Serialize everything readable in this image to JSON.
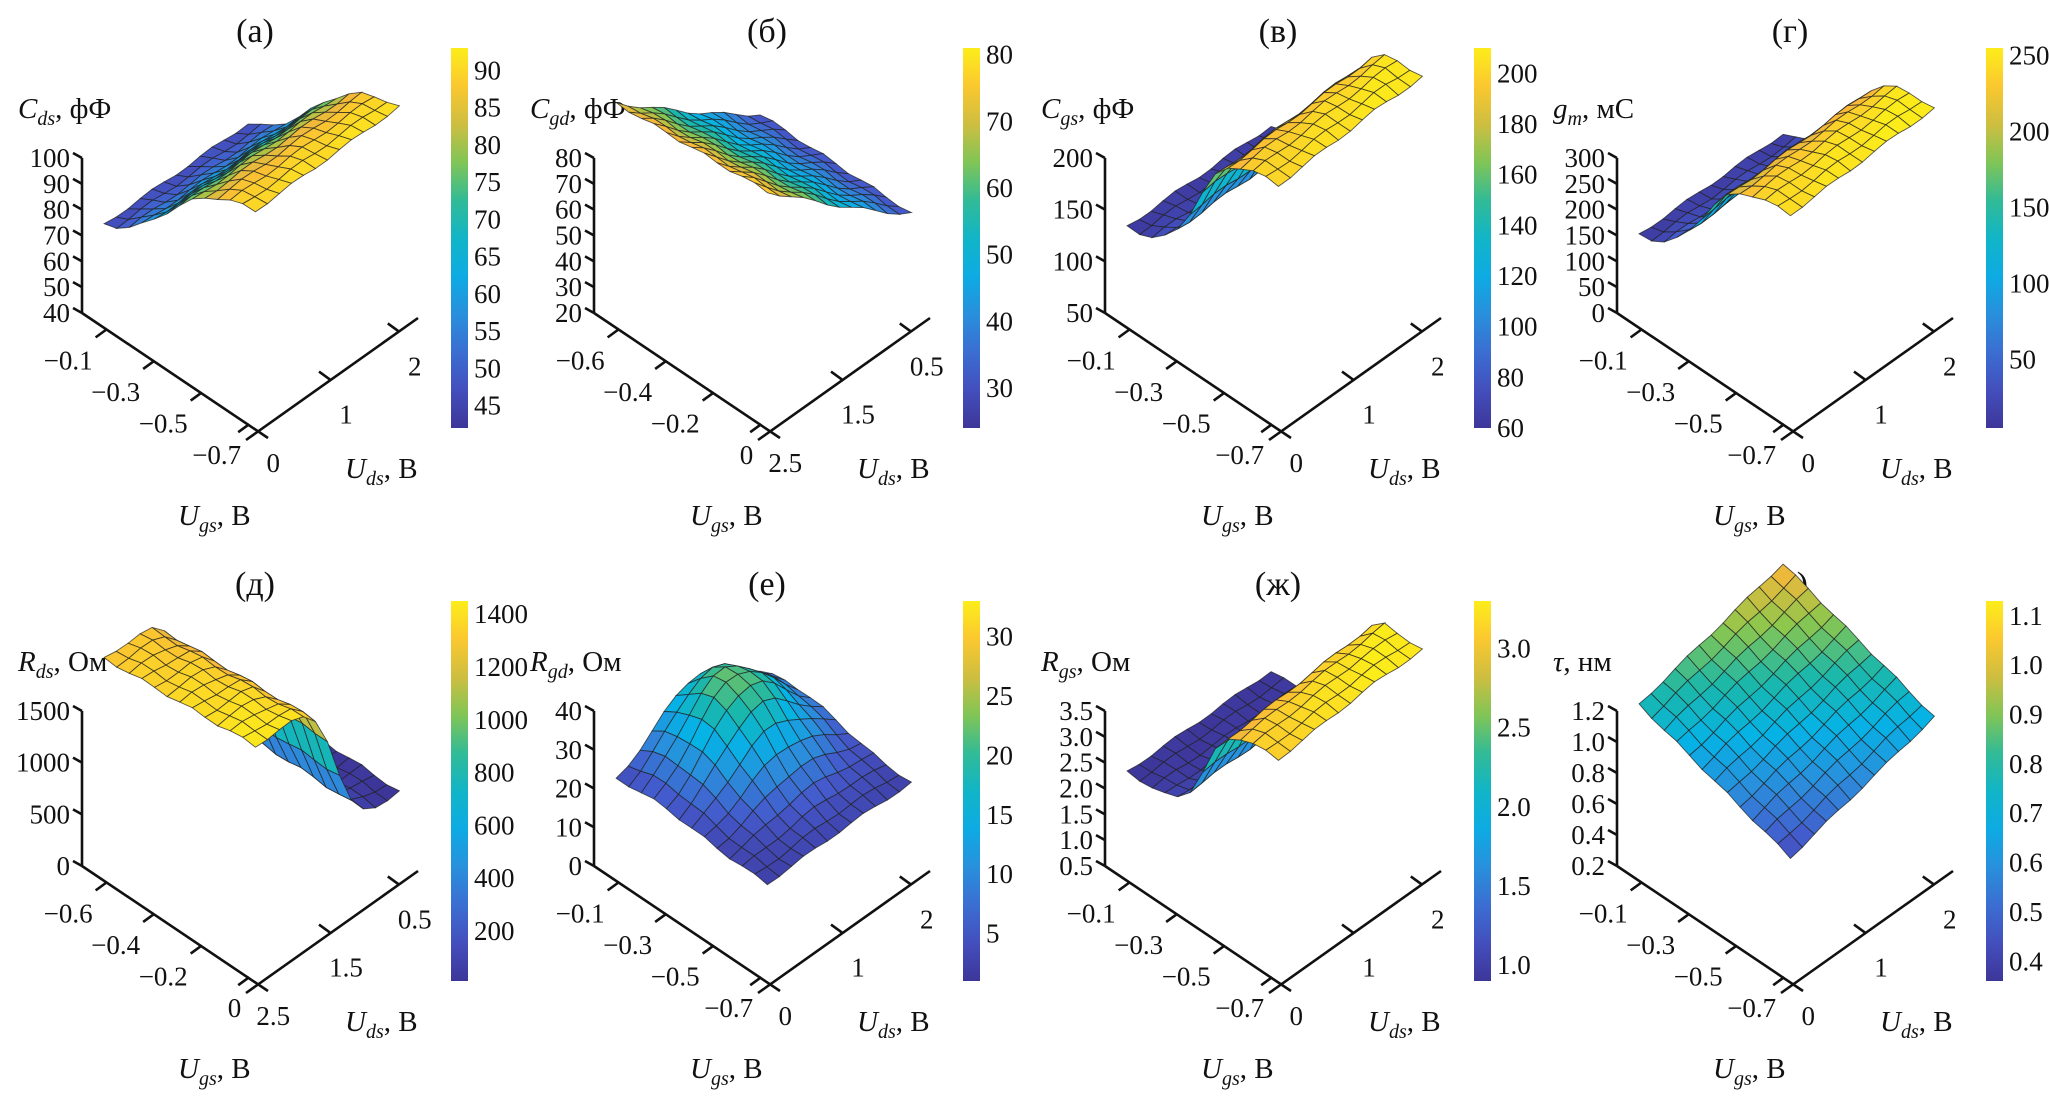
{
  "figure": {
    "panels": 8,
    "layout": "2 rows x 4 columns",
    "colormap": "parula"
  },
  "chart_data": [
    {
      "type": "surface",
      "panel_label": "(а)",
      "zlabel_sym": "C",
      "zlabel_sub": "ds",
      "zlabel_unit": ", фФ",
      "xlabel_sym": "U",
      "xlabel_sub": "gs",
      "xlabel_unit": ", В",
      "ylabel_sym": "U",
      "ylabel_sub": "ds",
      "ylabel_unit": ", В",
      "x_ticks": [
        "−0.1",
        "−0.3",
        "−0.5",
        "−0.7"
      ],
      "x_tick_values": [
        -0.1,
        -0.3,
        -0.5,
        -0.7
      ],
      "xlim": [
        -0.8,
        0.0
      ],
      "y_ticks": [
        "0",
        "1",
        "2"
      ],
      "y_tick_values": [
        0,
        1,
        2
      ],
      "ylim": [
        0,
        2.8
      ],
      "z_ticks": [
        "40",
        "50",
        "60",
        "70",
        "80",
        "90",
        "100"
      ],
      "z_tick_values": [
        40,
        50,
        60,
        70,
        80,
        90,
        100
      ],
      "zlim": [
        40,
        100
      ],
      "colorbar_ticks": [
        "45",
        "50",
        "55",
        "60",
        "65",
        "70",
        "75",
        "80",
        "85",
        "90"
      ],
      "colorbar_tick_values": [
        45,
        50,
        55,
        60,
        65,
        70,
        75,
        80,
        85,
        90
      ],
      "clim": [
        42,
        93
      ],
      "surface": "sigmoid_ugs",
      "z_low": 42,
      "z_high": 93,
      "ugs_mid": -0.45,
      "ugs_width": 0.12,
      "uds_gain": 0.02
    },
    {
      "type": "surface",
      "panel_label": "(б)",
      "zlabel_sym": "C",
      "zlabel_sub": "gd",
      "zlabel_unit": ", фФ",
      "xlabel_sym": "U",
      "xlabel_sub": "gs",
      "xlabel_unit": ", В",
      "ylabel_sym": "U",
      "ylabel_sub": "ds",
      "ylabel_unit": ", В",
      "x_ticks": [
        "−0.6",
        "−0.4",
        "−0.2",
        "0"
      ],
      "x_tick_values": [
        -0.6,
        -0.4,
        -0.2,
        0.0
      ],
      "xlim": [
        -0.7,
        0.1
      ],
      "y_ticks": [
        "2.5",
        "1.5",
        "0.5"
      ],
      "y_tick_values": [
        2.5,
        1.5,
        0.5
      ],
      "ylim": [
        2.8,
        0.0
      ],
      "z_ticks": [
        "20",
        "30",
        "40",
        "50",
        "60",
        "70",
        "80"
      ],
      "z_tick_values": [
        20,
        30,
        40,
        50,
        60,
        70,
        80
      ],
      "zlim": [
        20,
        80
      ],
      "colorbar_ticks": [
        "30",
        "40",
        "50",
        "60",
        "70",
        "80"
      ],
      "colorbar_tick_values": [
        30,
        40,
        50,
        60,
        70,
        80
      ],
      "clim": [
        24,
        81
      ],
      "surface": "ramp_uds",
      "z_low": 24,
      "z_high": 81
    },
    {
      "type": "surface",
      "panel_label": "(в)",
      "zlabel_sym": "C",
      "zlabel_sub": "gs",
      "zlabel_unit": ", фФ",
      "xlabel_sym": "U",
      "xlabel_sub": "gs",
      "xlabel_unit": ", В",
      "ylabel_sym": "U",
      "ylabel_sub": "ds",
      "ylabel_unit": ", В",
      "x_ticks": [
        "−0.1",
        "−0.3",
        "−0.5",
        "−0.7"
      ],
      "x_tick_values": [
        -0.1,
        -0.3,
        -0.5,
        -0.7
      ],
      "xlim": [
        -0.8,
        0.0
      ],
      "y_ticks": [
        "0",
        "1",
        "2"
      ],
      "y_tick_values": [
        0,
        1,
        2
      ],
      "ylim": [
        0,
        2.8
      ],
      "z_ticks": [
        "50",
        "100",
        "150",
        "200"
      ],
      "z_tick_values": [
        50,
        100,
        150,
        200
      ],
      "zlim": [
        50,
        200
      ],
      "colorbar_ticks": [
        "60",
        "80",
        "100",
        "120",
        "140",
        "160",
        "180",
        "200"
      ],
      "colorbar_tick_values": [
        60,
        80,
        100,
        120,
        140,
        160,
        180,
        200
      ],
      "clim": [
        60,
        210
      ],
      "surface": "sigmoid_ugs",
      "z_low": 62,
      "z_high": 208,
      "ugs_mid": -0.42,
      "ugs_width": 0.07,
      "uds_gain": 0.05
    },
    {
      "type": "surface",
      "panel_label": "(г)",
      "zlabel_sym": "g",
      "zlabel_sub": "m",
      "zlabel_unit": ", мС",
      "xlabel_sym": "U",
      "xlabel_sub": "gs",
      "xlabel_unit": ", В",
      "ylabel_sym": "U",
      "ylabel_sub": "ds",
      "ylabel_unit": ", В",
      "x_ticks": [
        "−0.1",
        "−0.3",
        "−0.5",
        "−0.7"
      ],
      "x_tick_values": [
        -0.1,
        -0.3,
        -0.5,
        -0.7
      ],
      "xlim": [
        -0.8,
        0.0
      ],
      "y_ticks": [
        "0",
        "1",
        "2"
      ],
      "y_tick_values": [
        0,
        1,
        2
      ],
      "ylim": [
        0,
        2.8
      ],
      "z_ticks": [
        "0",
        "50",
        "100",
        "150",
        "200",
        "250",
        "300"
      ],
      "z_tick_values": [
        0,
        50,
        100,
        150,
        200,
        250,
        300
      ],
      "zlim": [
        0,
        300
      ],
      "colorbar_ticks": [
        "50",
        "100",
        "150",
        "200",
        "250"
      ],
      "colorbar_tick_values": [
        50,
        100,
        150,
        200,
        250
      ],
      "clim": [
        5,
        255
      ],
      "surface": "sigmoid_ugs",
      "z_low": 5,
      "z_high": 255,
      "ugs_mid": -0.45,
      "ugs_width": 0.08,
      "uds_gain": 0.04
    },
    {
      "type": "surface",
      "panel_label": "(д)",
      "zlabel_sym": "R",
      "zlabel_sub": "ds",
      "zlabel_unit": ", Ом",
      "xlabel_sym": "U",
      "xlabel_sub": "gs",
      "xlabel_unit": ", В",
      "ylabel_sym": "U",
      "ylabel_sub": "ds",
      "ylabel_unit": ", В",
      "x_ticks": [
        "−0.6",
        "−0.4",
        "−0.2",
        "0"
      ],
      "x_tick_values": [
        -0.6,
        -0.4,
        -0.2,
        0.0
      ],
      "xlim": [
        -0.7,
        0.1
      ],
      "y_ticks": [
        "2.5",
        "1.5",
        "0.5"
      ],
      "y_tick_values": [
        2.5,
        1.5,
        0.5
      ],
      "ylim": [
        2.8,
        0.0
      ],
      "z_ticks": [
        "0",
        "500",
        "1000",
        "1500"
      ],
      "z_tick_values": [
        0,
        500,
        1000,
        1500
      ],
      "zlim": [
        0,
        1500
      ],
      "colorbar_ticks": [
        "200",
        "400",
        "600",
        "800",
        "1000",
        "1200",
        "1400"
      ],
      "colorbar_tick_values": [
        200,
        400,
        600,
        800,
        1000,
        1200,
        1400
      ],
      "clim": [
        10,
        1450
      ],
      "surface": "decay_uds",
      "z_low": 15,
      "z_high": 1440
    },
    {
      "type": "surface",
      "panel_label": "(е)",
      "zlabel_sym": "R",
      "zlabel_sub": "gd",
      "zlabel_unit": ", Ом",
      "xlabel_sym": "U",
      "xlabel_sub": "gs",
      "xlabel_unit": ", В",
      "ylabel_sym": "U",
      "ylabel_sub": "ds",
      "ylabel_unit": ", В",
      "x_ticks": [
        "−0.1",
        "−0.3",
        "−0.5",
        "−0.7"
      ],
      "x_tick_values": [
        -0.1,
        -0.3,
        -0.5,
        -0.7
      ],
      "xlim": [
        -0.8,
        0.0
      ],
      "y_ticks": [
        "0",
        "1",
        "2"
      ],
      "y_tick_values": [
        0,
        1,
        2
      ],
      "ylim": [
        0,
        2.8
      ],
      "z_ticks": [
        "0",
        "10",
        "20",
        "30",
        "40"
      ],
      "z_tick_values": [
        0,
        10,
        20,
        30,
        40
      ],
      "zlim": [
        0,
        40
      ],
      "colorbar_ticks": [
        "5",
        "10",
        "15",
        "20",
        "25",
        "30"
      ],
      "colorbar_tick_values": [
        5,
        10,
        15,
        20,
        25,
        30
      ],
      "clim": [
        1,
        33
      ],
      "surface": "peak",
      "z_low": 1,
      "z_high": 33
    },
    {
      "type": "surface",
      "panel_label": "(ж)",
      "zlabel_sym": "R",
      "zlabel_sub": "gs",
      "zlabel_unit": ", Ом",
      "xlabel_sym": "U",
      "xlabel_sub": "gs",
      "xlabel_unit": ", В",
      "ylabel_sym": "U",
      "ylabel_sub": "ds",
      "ylabel_unit": ", В",
      "x_ticks": [
        "−0.1",
        "−0.3",
        "−0.5",
        "−0.7"
      ],
      "x_tick_values": [
        -0.1,
        -0.3,
        -0.5,
        -0.7
      ],
      "xlim": [
        -0.8,
        0.0
      ],
      "y_ticks": [
        "0",
        "1",
        "2"
      ],
      "y_tick_values": [
        0,
        1,
        2
      ],
      "ylim": [
        0,
        2.8
      ],
      "z_ticks": [
        "0.5",
        "1.0",
        "1.5",
        "2.0",
        "2.5",
        "3.0",
        "3.5"
      ],
      "z_tick_values": [
        0.5,
        1.0,
        1.5,
        2.0,
        2.5,
        3.0,
        3.5
      ],
      "zlim": [
        0.5,
        3.5
      ],
      "colorbar_ticks": [
        "1.0",
        "1.5",
        "2.0",
        "2.5",
        "3.0"
      ],
      "colorbar_tick_values": [
        1.0,
        1.5,
        2.0,
        2.5,
        3.0
      ],
      "clim": [
        0.9,
        3.3
      ],
      "surface": "sigmoid_ugs",
      "z_low": 0.92,
      "z_high": 3.28,
      "ugs_mid": -0.38,
      "ugs_width": 0.05,
      "uds_gain": 0.08
    },
    {
      "type": "surface",
      "panel_label": "(з)",
      "zlabel_sym": "τ",
      "zlabel_sub": "",
      "zlabel_unit": ", нм",
      "xlabel_sym": "U",
      "xlabel_sub": "gs",
      "xlabel_unit": ", В",
      "ylabel_sym": "U",
      "ylabel_sub": "ds",
      "ylabel_unit": ", В",
      "x_ticks": [
        "−0.1",
        "−0.3",
        "−0.5",
        "−0.7"
      ],
      "x_tick_values": [
        -0.1,
        -0.3,
        -0.5,
        -0.7
      ],
      "xlim": [
        -0.8,
        0.0
      ],
      "y_ticks": [
        "0",
        "1",
        "2"
      ],
      "y_tick_values": [
        0,
        1,
        2
      ],
      "ylim": [
        0,
        2.8
      ],
      "z_ticks": [
        "0.2",
        "0.4",
        "0.6",
        "0.8",
        "1.0",
        "1.2"
      ],
      "z_tick_values": [
        0.2,
        0.4,
        0.6,
        0.8,
        1.0,
        1.2
      ],
      "zlim": [
        0.2,
        1.2
      ],
      "colorbar_ticks": [
        "0.4",
        "0.5",
        "0.6",
        "0.7",
        "0.8",
        "0.9",
        "1.0",
        "1.1"
      ],
      "colorbar_tick_values": [
        0.4,
        0.5,
        0.6,
        0.7,
        0.8,
        0.9,
        1.0,
        1.1
      ],
      "clim": [
        0.36,
        1.13
      ],
      "surface": "plane",
      "z_low": 0.36,
      "z_high": 1.08
    }
  ]
}
